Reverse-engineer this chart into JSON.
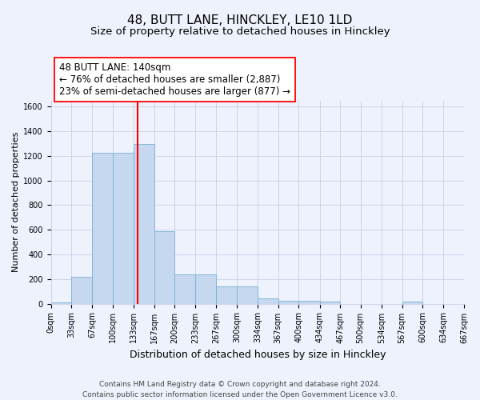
{
  "title": "48, BUTT LANE, HINCKLEY, LE10 1LD",
  "subtitle": "Size of property relative to detached houses in Hinckley",
  "xlabel": "Distribution of detached houses by size in Hinckley",
  "ylabel": "Number of detached properties",
  "footnote": "Contains HM Land Registry data © Crown copyright and database right 2024.\nContains public sector information licensed under the Open Government Licence v3.0.",
  "annotation_line1": "48 BUTT LANE: 140sqm",
  "annotation_line2": "← 76% of detached houses are smaller (2,887)",
  "annotation_line3": "23% of semi-detached houses are larger (877) →",
  "property_size": 140,
  "bar_color": "#c5d8f0",
  "bar_edge_color": "#7ab0d4",
  "vline_color": "red",
  "background_color": "#eef2fc",
  "bins": [
    0,
    33,
    67,
    100,
    133,
    167,
    200,
    233,
    267,
    300,
    334,
    367,
    400,
    434,
    467,
    500,
    534,
    567,
    600,
    634,
    667
  ],
  "bin_labels": [
    "0sqm",
    "33sqm",
    "67sqm",
    "100sqm",
    "133sqm",
    "167sqm",
    "200sqm",
    "233sqm",
    "267sqm",
    "300sqm",
    "334sqm",
    "367sqm",
    "400sqm",
    "434sqm",
    "467sqm",
    "500sqm",
    "534sqm",
    "567sqm",
    "600sqm",
    "634sqm",
    "667sqm"
  ],
  "heights": [
    10,
    220,
    1225,
    1225,
    1300,
    590,
    240,
    240,
    140,
    140,
    45,
    25,
    25,
    15,
    0,
    0,
    0,
    15,
    0,
    0,
    0
  ],
  "ylim": [
    0,
    1650
  ],
  "yticks": [
    0,
    200,
    400,
    600,
    800,
    1000,
    1200,
    1400,
    1600
  ],
  "grid_color": "#c8d0e8",
  "title_fontsize": 11,
  "subtitle_fontsize": 9.5,
  "annot_fontsize": 8.5,
  "xlabel_fontsize": 9,
  "ylabel_fontsize": 8,
  "tick_fontsize": 7,
  "footnote_fontsize": 6.5
}
